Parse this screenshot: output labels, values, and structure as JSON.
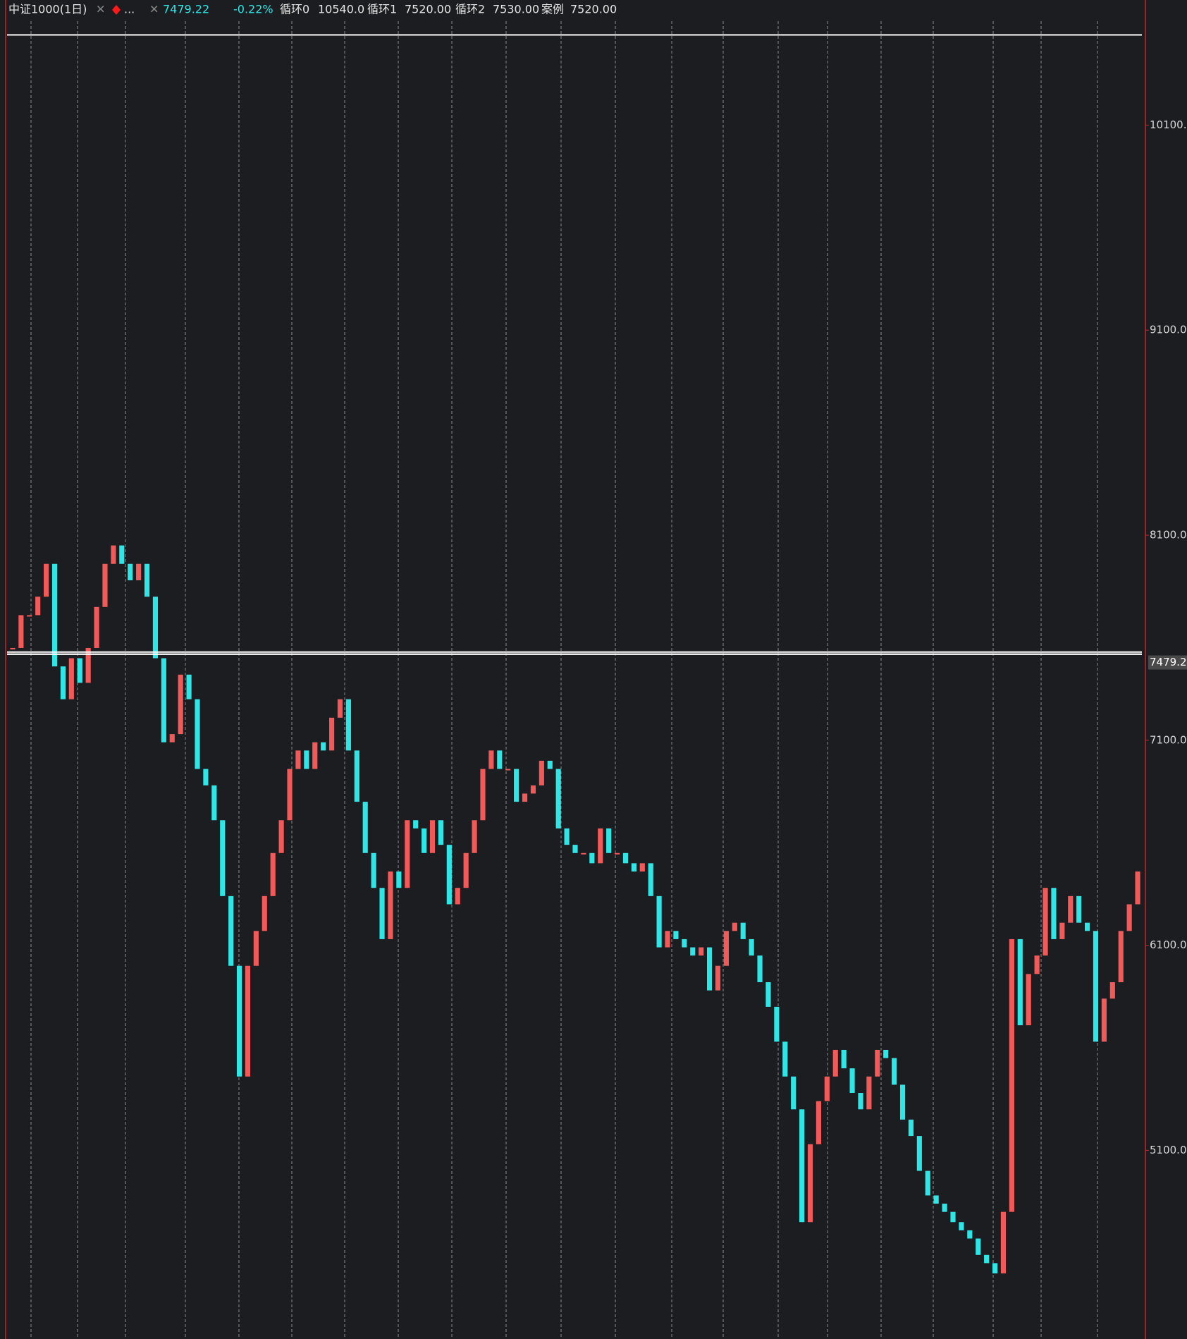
{
  "chart_data": {
    "type": "candlestick",
    "title": "中证1000(1日)",
    "title_suffix": "...",
    "price": 7479.22,
    "change": -0.22,
    "change_label": "-0.22%",
    "levels": [
      {
        "name": "循环0",
        "value": 10540,
        "label": "10540.0"
      },
      {
        "name": "循环1",
        "value": 7520,
        "label": "7520.00"
      },
      {
        "name": "循环2",
        "value": 7530,
        "label": "7530.00"
      },
      {
        "name": "案例",
        "value": 7520,
        "label": "7520.00"
      }
    ],
    "up_color": "#f25a5a",
    "down_color": "#2ee6e6",
    "level_color": "#ffffff",
    "values": [
      7550,
      7710,
      7710,
      7800,
      7960,
      7460,
      7300,
      7500,
      7380,
      7550,
      7750,
      7960,
      8050,
      7960,
      7880,
      7960,
      7800,
      7500,
      7090,
      7130,
      7420,
      7300,
      6960,
      6880,
      6710,
      6340,
      6000,
      5460,
      6000,
      6170,
      6340,
      6550,
      6710,
      6960,
      7050,
      6960,
      7090,
      7050,
      7210,
      7300,
      7050,
      6800,
      6550,
      6380,
      6130,
      6460,
      6380,
      6710,
      6670,
      6550,
      6710,
      6590,
      6300,
      6380,
      6550,
      6710,
      6960,
      7050,
      6960,
      6960,
      6800,
      6840,
      6880,
      7000,
      6960,
      6670,
      6590,
      6550,
      6550,
      6500,
      6670,
      6550,
      6550,
      6500,
      6460,
      6500,
      6340,
      6090,
      6170,
      6130,
      6090,
      6050,
      6090,
      5880,
      6000,
      6170,
      6210,
      6130,
      6050,
      5920,
      5800,
      5630,
      5460,
      5300,
      4750,
      5130,
      5340,
      5460,
      5590,
      5500,
      5380,
      5300,
      5460,
      5590,
      5550,
      5420,
      5250,
      5170,
      5000,
      4880,
      4840,
      4800,
      4750,
      4710,
      4670,
      4590,
      4550,
      4500,
      4800,
      6130,
      5710,
      5960,
      6050,
      6380,
      6130,
      6210,
      6340,
      6210,
      6170,
      5630,
      5840,
      5920,
      6170,
      6300,
      6460
    ],
    "ylim": [
      4180,
      10710
    ],
    "yticks": [
      {
        "value": 10100,
        "label": "10100."
      },
      {
        "value": 9100,
        "label": "9100.0"
      },
      {
        "value": 8100,
        "label": "8100.0"
      },
      {
        "value": 7100,
        "label": "7100.0"
      },
      {
        "value": 6100,
        "label": "6100.0"
      },
      {
        "value": 5100,
        "label": "5100.0"
      }
    ]
  }
}
